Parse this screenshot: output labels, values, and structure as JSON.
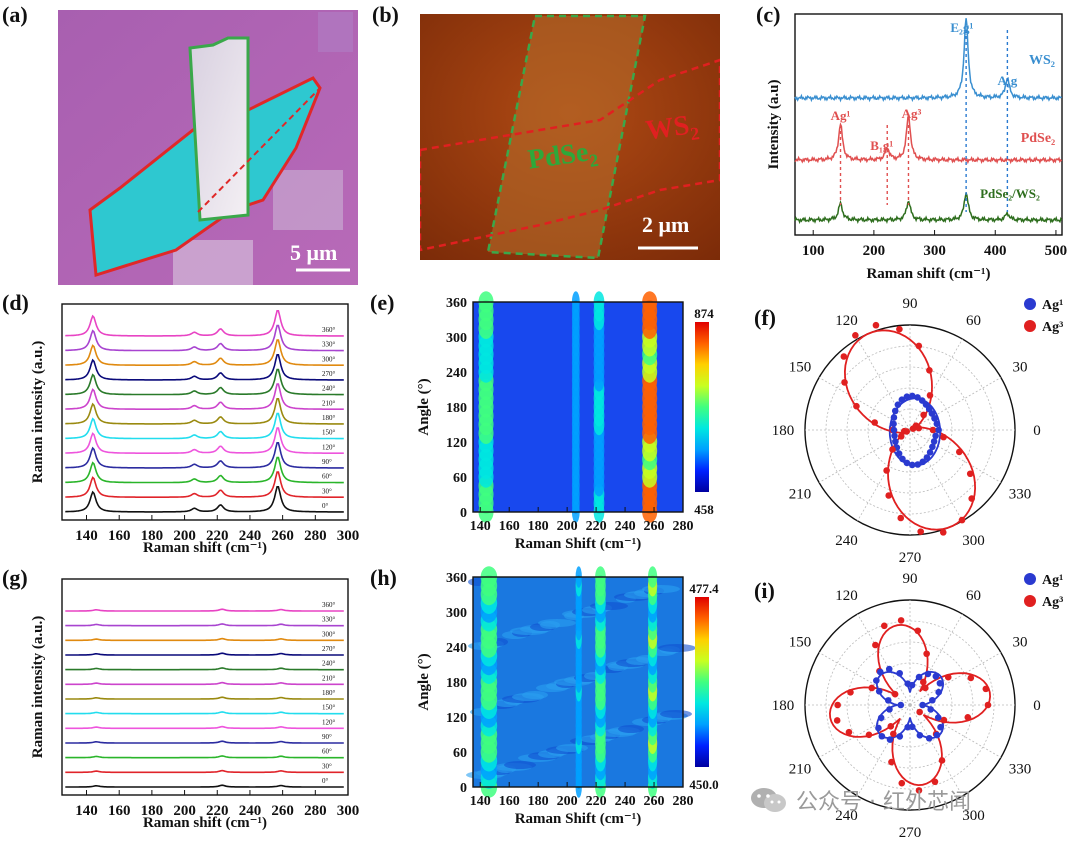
{
  "panels": {
    "a": {
      "label": "(a)",
      "scale": "5 μm"
    },
    "b": {
      "label": "(b)",
      "scale": "2 μm",
      "ws2": "WS",
      "ws2_sub": "2",
      "pdse2": "PdSe",
      "pdse2_sub": "2"
    },
    "c": {
      "label": "(c)"
    },
    "d": {
      "label": "(d)"
    },
    "e": {
      "label": "(e)"
    },
    "f": {
      "label": "(f)"
    },
    "g": {
      "label": "(g)"
    },
    "h": {
      "label": "(h)"
    },
    "i": {
      "label": "(i)"
    }
  },
  "colors": {
    "waterfall": [
      "#111111",
      "#e0242a",
      "#2ab52a",
      "#2c2ca0",
      "#ee55dd",
      "#22ddee",
      "#9a8a10",
      "#cc44cc",
      "#2a7a2a",
      "#0a0a7a",
      "#e08a10",
      "#a844d0",
      "#e844c4"
    ],
    "ws2": "#3a8fd0",
    "pdse2": "#e05050",
    "hetero": "#2e6e1e",
    "red": "#e02020",
    "blue": "#2a3ad0"
  },
  "chart_data": [
    {
      "id": "c",
      "type": "line",
      "xlabel": "Raman shift (cm⁻¹)",
      "ylabel": "Intensity (a.u)",
      "xlim": [
        70,
        510
      ],
      "xticks": [
        100,
        200,
        300,
        400,
        500
      ],
      "series": [
        {
          "name": "WS₂",
          "peaks": [
            [
              352,
              1.0
            ],
            [
              420,
              0.25
            ]
          ],
          "labels": [
            "E₂g¹",
            "A₁g"
          ]
        },
        {
          "name": "PdSe₂",
          "peaks": [
            [
              145,
              0.6
            ],
            [
              222,
              0.2
            ],
            [
              257,
              0.75
            ]
          ],
          "labels": [
            "Ag¹",
            "B₁g¹",
            "Ag³"
          ]
        },
        {
          "name": "PdSe₂/WS₂",
          "peaks": [
            [
              145,
              0.3
            ],
            [
              257,
              0.35
            ],
            [
              352,
              0.5
            ],
            [
              420,
              0.12
            ]
          ]
        }
      ]
    },
    {
      "id": "d",
      "type": "line",
      "xlabel": "Raman shift (cm⁻¹)",
      "ylabel": "Raman intensity (a.u.)",
      "xlim": [
        125,
        300
      ],
      "xticks": [
        140,
        160,
        180,
        200,
        220,
        240,
        260,
        280,
        300
      ],
      "angles": [
        "0°",
        "30°",
        "60°",
        "90°",
        "120°",
        "150°",
        "180°",
        "210°",
        "240°",
        "270°",
        "300°",
        "330°",
        "360°"
      ],
      "peaks": [
        [
          144,
          1.0
        ],
        [
          206,
          0.18
        ],
        [
          222,
          0.35
        ],
        [
          257,
          1.3
        ]
      ]
    },
    {
      "id": "e",
      "type": "heatmap",
      "xlabel": "Raman Shift (cm⁻¹)",
      "ylabel": "Angle (°)",
      "xlim": [
        135,
        280
      ],
      "ylim": [
        0,
        360
      ],
      "xticks": [
        140,
        160,
        180,
        200,
        220,
        240,
        260,
        280
      ],
      "yticks": [
        0,
        60,
        120,
        180,
        240,
        300,
        360
      ],
      "cbar_max": "874",
      "cbar_min": "458"
    },
    {
      "id": "f",
      "type": "scatter",
      "polar": true,
      "angle_ticks": [
        "0",
        "30",
        "60",
        "90",
        "120",
        "150",
        "180",
        "210",
        "240",
        "270",
        "300",
        "330"
      ],
      "series": [
        {
          "name": "Ag¹",
          "color": "#2a3ad0"
        },
        {
          "name": "Ag³",
          "color": "#e02020"
        }
      ]
    },
    {
      "id": "g",
      "type": "line",
      "xlabel": "Raman shift (cm⁻¹)",
      "ylabel": "Raman intensity (a.u.)",
      "xlim": [
        125,
        300
      ],
      "xticks": [
        140,
        160,
        180,
        200,
        220,
        240,
        260,
        280,
        300
      ],
      "angles": [
        "0°",
        "30°",
        "60°",
        "90°",
        "120°",
        "150°",
        "180°",
        "210°",
        "240°",
        "270°",
        "300°",
        "330°",
        "360°"
      ],
      "peaks": [
        [
          146,
          0.25
        ],
        [
          223,
          0.35
        ],
        [
          259,
          0.3
        ]
      ]
    },
    {
      "id": "h",
      "type": "heatmap",
      "xlabel": "Raman Shift (cm⁻¹)",
      "ylabel": "Angle (°)",
      "xlim": [
        135,
        280
      ],
      "ylim": [
        0,
        360
      ],
      "xticks": [
        140,
        160,
        180,
        200,
        220,
        240,
        260,
        280
      ],
      "yticks": [
        0,
        60,
        120,
        180,
        240,
        300,
        360
      ],
      "cbar_max": "477.4",
      "cbar_min": "450.0"
    },
    {
      "id": "i",
      "type": "scatter",
      "polar": true,
      "angle_ticks": [
        "0",
        "30",
        "60",
        "90",
        "120",
        "150",
        "180",
        "210",
        "240",
        "270",
        "300",
        "330"
      ],
      "series": [
        {
          "name": "Ag¹",
          "color": "#2a3ad0"
        },
        {
          "name": "Ag³",
          "color": "#e02020"
        }
      ]
    }
  ],
  "watermark": {
    "text": "公众号 · 红外芯闻"
  }
}
